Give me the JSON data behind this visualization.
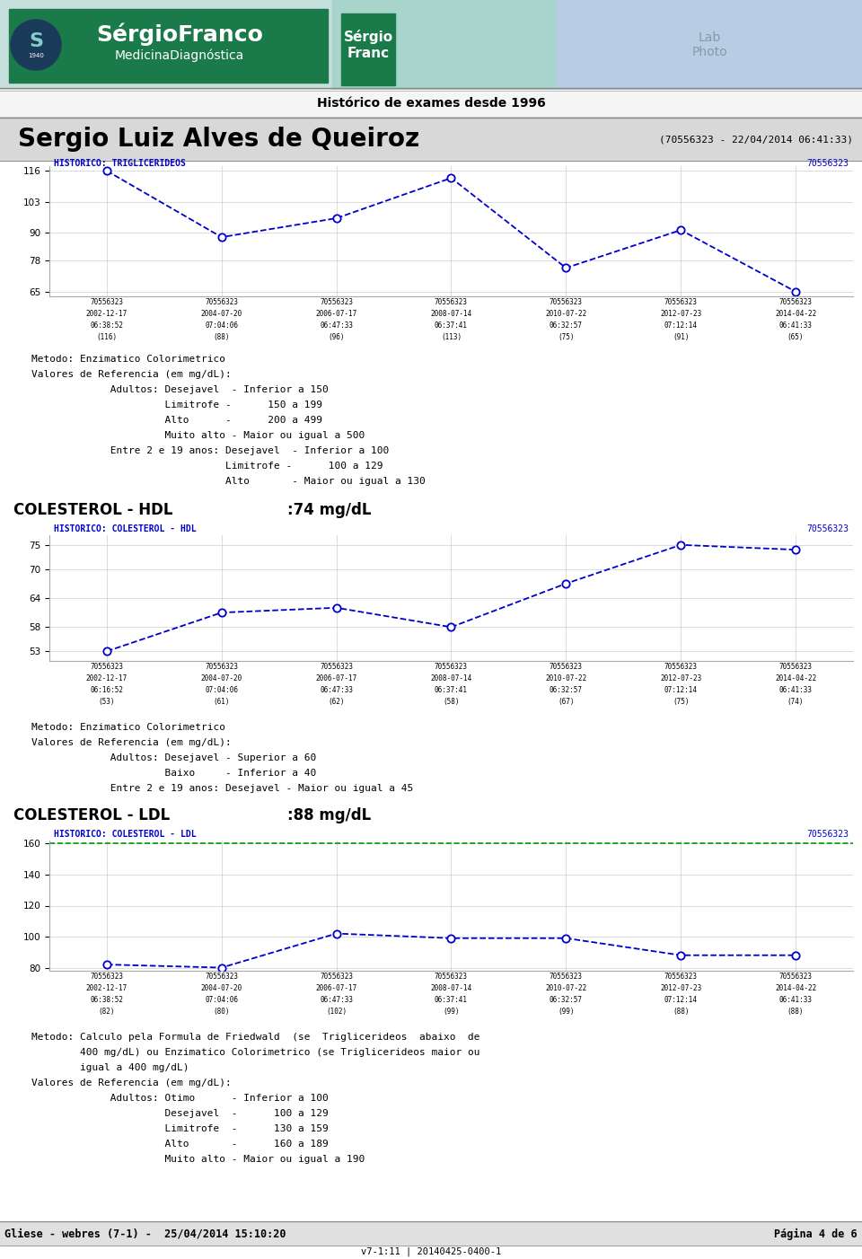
{
  "title_name": "Sergio Luiz Alves de Queiroz",
  "title_id": "(70556323 - 22/04/2014 06:41:33)",
  "header_text": "Histórico de exames desde 1996",
  "footer_left": "Gliese - webres (7-1) -  25/04/2014 15:10:20",
  "footer_right": "Página 4 de 6",
  "footer_version": "v7-1:11 | 20140425-0400-1",
  "chart1": {
    "title": "HISTORICO: TRIGLICERIDEOS",
    "id_label": "70556323",
    "x_labels": [
      "70556323\n2002-12-17\n06:38:52\n(116)",
      "70556323\n2004-07-20\n07:04:06\n(88)",
      "70556323\n2006-07-17\n06:47:33\n(96)",
      "70556323\n2008-07-14\n06:37:41\n(113)",
      "70556323\n2010-07-22\n06:32:57\n(75)",
      "70556323\n2012-07-23\n07:12:14\n(91)",
      "70556323\n2014-04-22\n06:41:33\n(65)"
    ],
    "x_vals": [
      0,
      1,
      2,
      3,
      4,
      5,
      6
    ],
    "y_vals": [
      116,
      88,
      96,
      113,
      75,
      91,
      65
    ],
    "ylim": [
      63,
      118
    ],
    "yticks": [
      65,
      78,
      90,
      103,
      116
    ],
    "color": "#0000cc",
    "notes": [
      "Metodo: Enzimatico Colorimetrico",
      "Valores de Referencia (em mg/dL):",
      "             Adultos: Desejavel  - Inferior a 150",
      "                      Limitrofe -      150 a 199",
      "                      Alto      -      200 a 499",
      "                      Muito alto - Maior ou igual a 500",
      "             Entre 2 e 19 anos: Desejavel  - Inferior a 100",
      "                                Limitrofe -      100 a 129",
      "                                Alto       - Maior ou igual a 130"
    ]
  },
  "section2_label": "COLESTEROL - HDL",
  "section2_value": ":74 mg/dL",
  "chart2": {
    "title": "HISTORICO: COLESTEROL - HDL",
    "id_label": "70556323",
    "x_labels": [
      "70556323\n2002-12-17\n06:16:52\n(53)",
      "70556323\n2004-07-20\n07:04:06\n(61)",
      "70556323\n2006-07-17\n06:47:33\n(62)",
      "70556323\n2008-07-14\n06:37:41\n(58)",
      "70556323\n2010-07-22\n06:32:57\n(67)",
      "70556323\n2012-07-23\n07:12:14\n(75)",
      "70556323\n2014-04-22\n06:41:33\n(74)"
    ],
    "x_vals": [
      0,
      1,
      2,
      3,
      4,
      5,
      6
    ],
    "y_vals": [
      53,
      61,
      62,
      58,
      67,
      75,
      74
    ],
    "ylim": [
      51,
      77
    ],
    "yticks": [
      53,
      58,
      64,
      70,
      75
    ],
    "color": "#0000cc",
    "notes": [
      "Metodo: Enzimatico Colorimetrico",
      "Valores de Referencia (em mg/dL):",
      "             Adultos: Desejavel - Superior a 60",
      "                      Baixo     - Inferior a 40",
      "             Entre 2 e 19 anos: Desejavel - Maior ou igual a 45"
    ]
  },
  "section3_label": "COLESTEROL - LDL",
  "section3_value": ":88 mg/dL",
  "chart3": {
    "title": "HISTORICO: COLESTEROL - LDL",
    "id_label": "70556323",
    "x_labels": [
      "70556323\n2002-12-17\n06:38:52\n(82)",
      "70556323\n2004-07-20\n07:04:06\n(80)",
      "70556323\n2006-07-17\n06:47:33\n(102)",
      "70556323\n2008-07-14\n06:37:41\n(99)",
      "70556323\n2010-07-22\n06:32:57\n(99)",
      "70556323\n2012-07-23\n07:12:14\n(88)",
      "70556323\n2014-04-22\n06:41:33\n(88)"
    ],
    "x_vals": [
      0,
      1,
      2,
      3,
      4,
      5,
      6
    ],
    "y_vals": [
      82,
      80,
      102,
      99,
      99,
      88,
      88
    ],
    "ylim": [
      78,
      162
    ],
    "yticks": [
      80,
      100,
      120,
      140,
      160
    ],
    "color": "#0000cc",
    "ref_line_y": 160,
    "ref_line_color": "#009900",
    "notes": [
      "Metodo: Calculo pela Formula de Friedwald  (se  Triglicerideos  abaixo  de",
      "        400 mg/dL) ou Enzimatico Colorimetrico (se Triglicerideos maior ou",
      "        igual a 400 mg/dL)",
      "Valores de Referencia (em mg/dL):",
      "             Adultos: Otimo      - Inferior a 100",
      "                      Desejavel  -      100 a 129",
      "                      Limitrofe  -      130 a 159",
      "                      Alto       -      160 a 189",
      "                      Muito alto - Maior ou igual a 190"
    ]
  },
  "bg_color": "#ffffff",
  "plot_bg": "#ffffff",
  "grid_color": "#cccccc",
  "hist_title_color": "#0000cc",
  "note_fontsize": 8.0,
  "section_fontsize": 12,
  "chart_label_fontsize": 5.5
}
